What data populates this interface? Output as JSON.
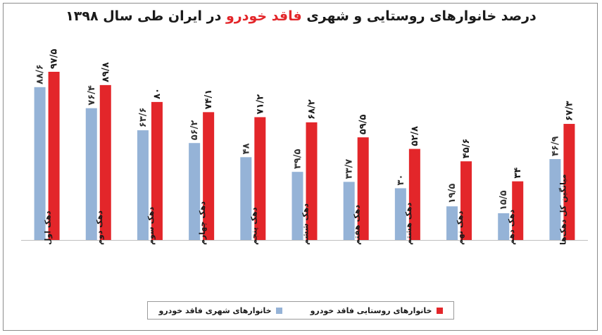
{
  "title": {
    "prefix": "درصد خانوارهای روستایی و شهری",
    "highlight": "فاقد خودرو",
    "suffix": "در ایران طی سال ۱۳۹۸"
  },
  "colors": {
    "urban": "#95b3d7",
    "rural": "#e3262a",
    "highlight": "#e3262a"
  },
  "legend": {
    "rural": "خانوارهای روستایی فاقد خودرو",
    "urban": "خانوارهای شهری فاقد خودرو"
  },
  "chart_data": {
    "type": "bar",
    "categories": [
      "دهک اول",
      "دهک دوم",
      "دهک سوم",
      "دهک چهارم",
      "دهک پنجم",
      "دهک ششم",
      "دهک هفتم",
      "دهک هشتم",
      "دهک نهم",
      "دهک دهم",
      "میانگین کل دهک‌ها"
    ],
    "series": [
      {
        "name": "خانوارهای شهری فاقد خودرو",
        "values": [
          88.6,
          76.4,
          63.6,
          56.2,
          48,
          39.5,
          33.7,
          30,
          19.5,
          15.5,
          46.9
        ],
        "labels": [
          "۸۸/۶",
          "۷۶/۴",
          "۶۳/۶",
          "۵۶/۲",
          "۴۸",
          "۳۹/۵",
          "۳۳/۷",
          "۳۰",
          "۱۹/۵",
          "۱۵/۵",
          "۴۶/۹"
        ]
      },
      {
        "name": "خانوارهای روستایی فاقد خودرو",
        "values": [
          97.5,
          89.8,
          80,
          74.1,
          71.2,
          68.2,
          59.5,
          52.8,
          45.6,
          34,
          67.3
        ],
        "labels": [
          "۹۷/۵",
          "۸۹/۸",
          "۸۰",
          "۷۴/۱",
          "۷۱/۲",
          "۶۸/۲",
          "۵۹/۵",
          "۵۲/۸",
          "۴۵/۶",
          "۳۴",
          "۶۷/۳"
        ]
      }
    ],
    "ylim": [
      0,
      100
    ],
    "grid": false,
    "legend_position": "bottom"
  }
}
